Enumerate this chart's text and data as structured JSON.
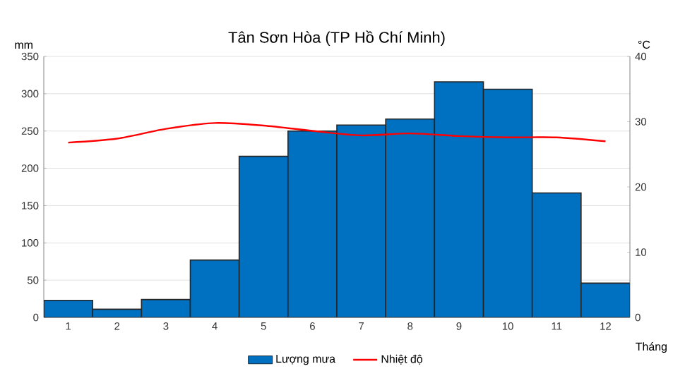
{
  "chart_data": {
    "type": "bar",
    "title": "Tân Sơn Hòa (TP Hồ Chí Minh)",
    "xlabel": "Tháng",
    "ylabel": "mm",
    "y2label": "°C",
    "categories": [
      "1",
      "2",
      "3",
      "4",
      "5",
      "6",
      "7",
      "8",
      "9",
      "10",
      "11",
      "12"
    ],
    "series": [
      {
        "name": "Lượng mưa",
        "color": "#0070c0",
        "values": [
          23,
          11,
          24,
          77,
          216,
          250,
          258,
          266,
          316,
          306,
          167,
          46
        ]
      },
      {
        "name": "Nhiệt độ",
        "type": "line",
        "axis": "y2",
        "color": "#ff0000",
        "marker": "none",
        "values": [
          26.8,
          27.4,
          28.9,
          29.8,
          29.4,
          28.6,
          27.9,
          28.2,
          27.8,
          27.6,
          27.6,
          27.0
        ]
      }
    ],
    "ylim": [
      0,
      350
    ],
    "yticks": [
      0,
      50,
      100,
      150,
      200,
      250,
      300,
      350
    ],
    "y2lim": [
      0,
      40
    ],
    "y2ticks": [
      0,
      10,
      20,
      30,
      40
    ],
    "grid": "y",
    "legend": "bottom"
  }
}
